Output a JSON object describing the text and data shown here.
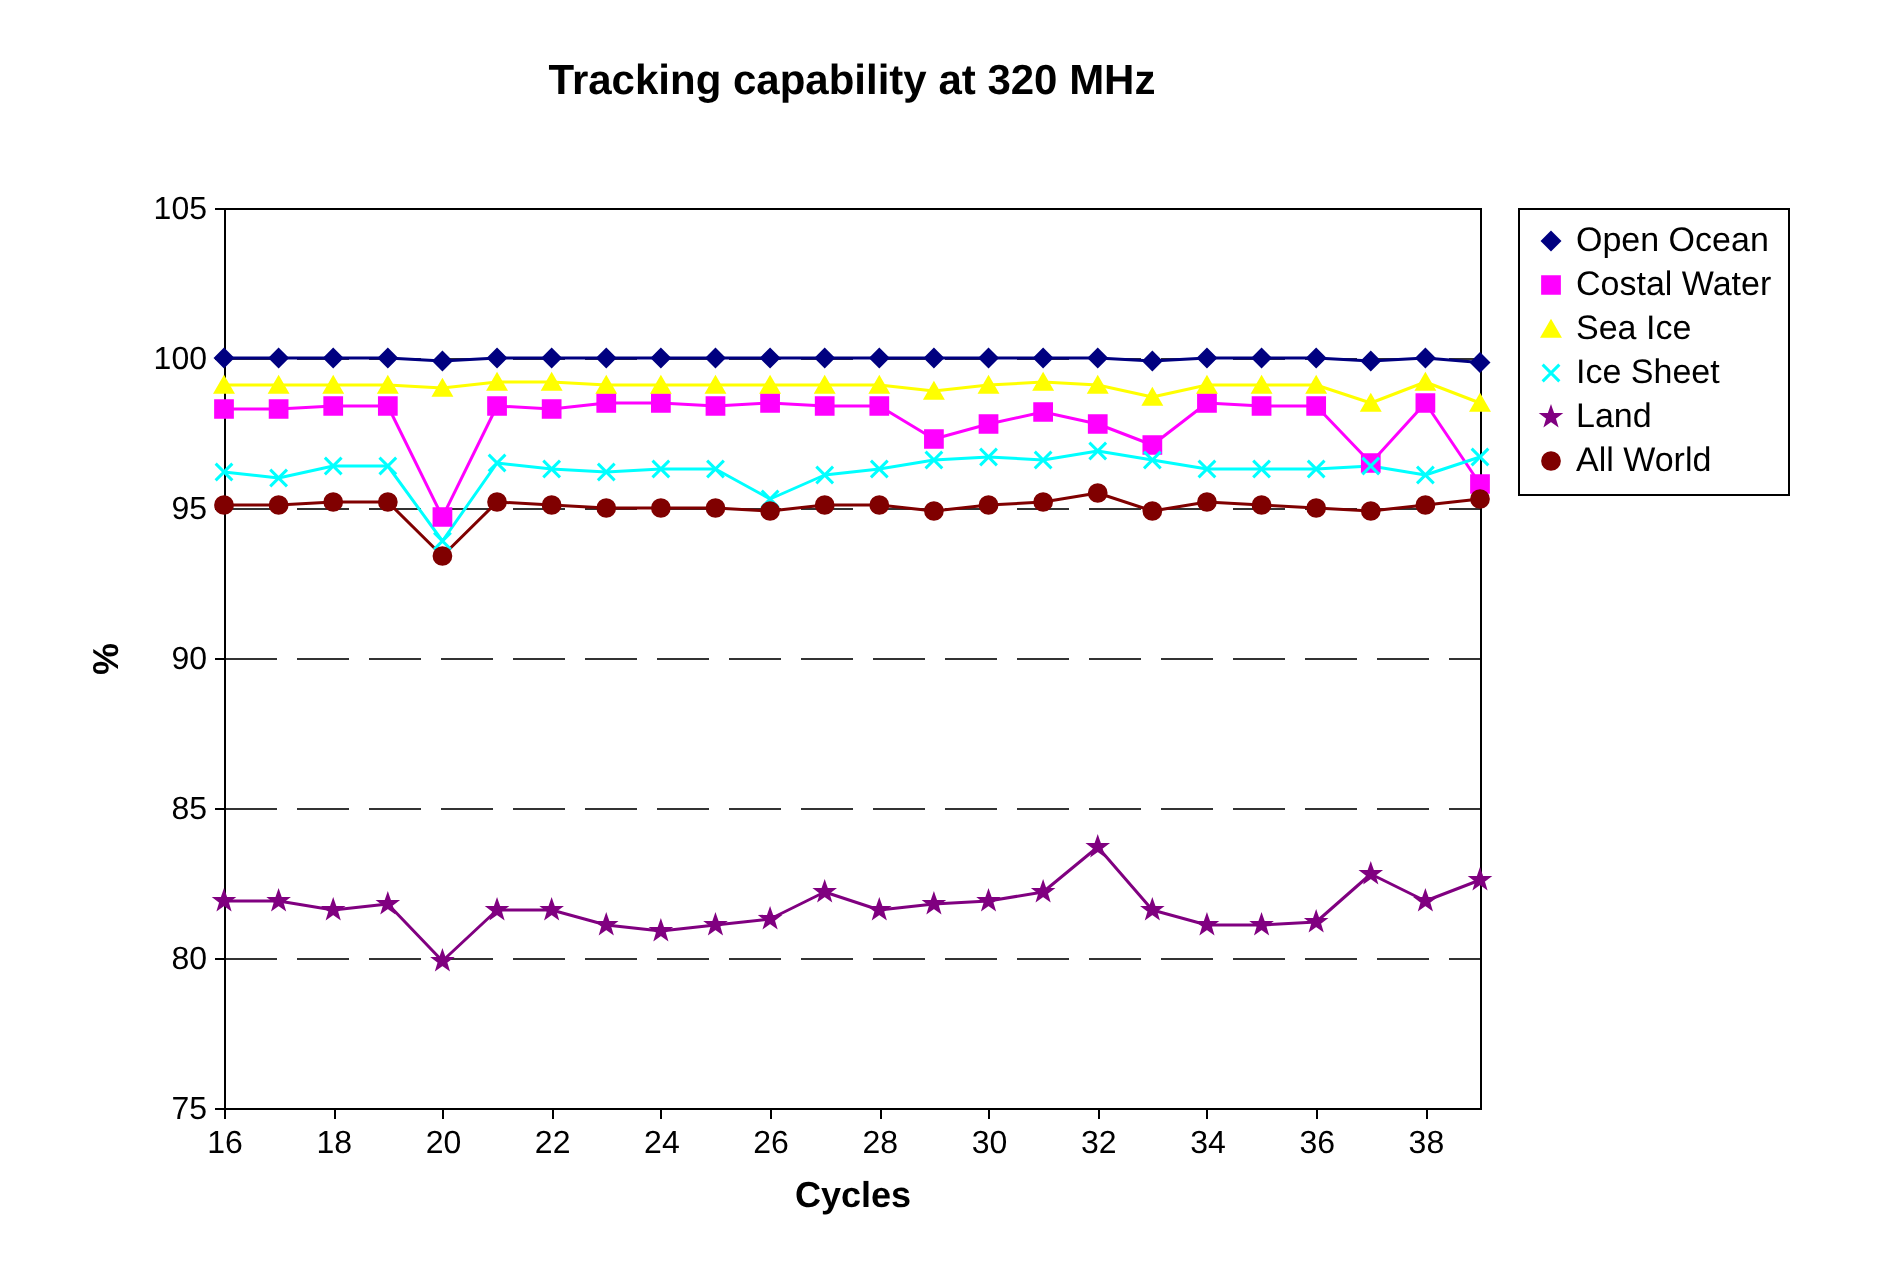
{
  "chart_data": {
    "type": "line",
    "title": "Tracking capability at 320 MHz",
    "xlabel": "Cycles",
    "ylabel": "%",
    "x": [
      16,
      17,
      18,
      19,
      20,
      21,
      22,
      23,
      24,
      25,
      26,
      27,
      28,
      29,
      30,
      31,
      32,
      33,
      34,
      35,
      36,
      37,
      38,
      39
    ],
    "series": [
      {
        "name": "Open Ocean",
        "color": "#000080",
        "marker": "diamond",
        "values": [
          100,
          100,
          100,
          100,
          99.9,
          100,
          100,
          100,
          100,
          100,
          100,
          100,
          100,
          100,
          100,
          100,
          100,
          99.9,
          100,
          100,
          100,
          99.9,
          100,
          99.85
        ]
      },
      {
        "name": "Costal Water",
        "color": "#ff00ff",
        "marker": "square",
        "values": [
          98.3,
          98.3,
          98.4,
          98.4,
          94.7,
          98.4,
          98.3,
          98.5,
          98.5,
          98.4,
          98.5,
          98.4,
          98.4,
          97.3,
          97.8,
          98.2,
          97.8,
          97.1,
          98.5,
          98.4,
          98.4,
          96.5,
          98.5,
          95.8
        ]
      },
      {
        "name": "Sea Ice",
        "color": "#ffff00",
        "marker": "triangle",
        "values": [
          99.1,
          99.1,
          99.1,
          99.1,
          99.0,
          99.2,
          99.2,
          99.1,
          99.1,
          99.1,
          99.1,
          99.1,
          99.1,
          98.9,
          99.1,
          99.2,
          99.1,
          98.7,
          99.1,
          99.1,
          99.1,
          98.5,
          99.2,
          98.5
        ]
      },
      {
        "name": "Ice Sheet",
        "color": "#00ffff",
        "marker": "cross",
        "values": [
          96.2,
          96.0,
          96.4,
          96.4,
          93.9,
          96.5,
          96.3,
          96.2,
          96.3,
          96.3,
          95.3,
          96.1,
          96.3,
          96.6,
          96.7,
          96.6,
          96.9,
          96.6,
          96.3,
          96.3,
          96.3,
          96.4,
          96.1,
          96.7
        ]
      },
      {
        "name": "Land",
        "color": "#800080",
        "marker": "star",
        "values": [
          81.9,
          81.9,
          81.6,
          81.8,
          79.9,
          81.6,
          81.6,
          81.1,
          80.9,
          81.1,
          81.3,
          82.2,
          81.6,
          81.8,
          81.9,
          82.2,
          83.7,
          81.6,
          81.1,
          81.1,
          81.2,
          82.8,
          81.9,
          82.6
        ]
      },
      {
        "name": "All World",
        "color": "#800000",
        "marker": "circle",
        "values": [
          95.1,
          95.1,
          95.2,
          95.2,
          93.4,
          95.2,
          95.1,
          95.0,
          95.0,
          95.0,
          94.9,
          95.1,
          95.1,
          94.9,
          95.1,
          95.2,
          95.5,
          94.9,
          95.2,
          95.1,
          95.0,
          94.9,
          95.1,
          95.3
        ]
      }
    ],
    "xlim": [
      16,
      39
    ],
    "xticks": [
      16,
      18,
      20,
      22,
      24,
      26,
      28,
      30,
      32,
      34,
      36,
      38
    ],
    "ylim": [
      75,
      105
    ],
    "yticks": [
      75,
      80,
      85,
      90,
      95,
      100,
      105
    ],
    "grid": "y",
    "legend": "right"
  }
}
